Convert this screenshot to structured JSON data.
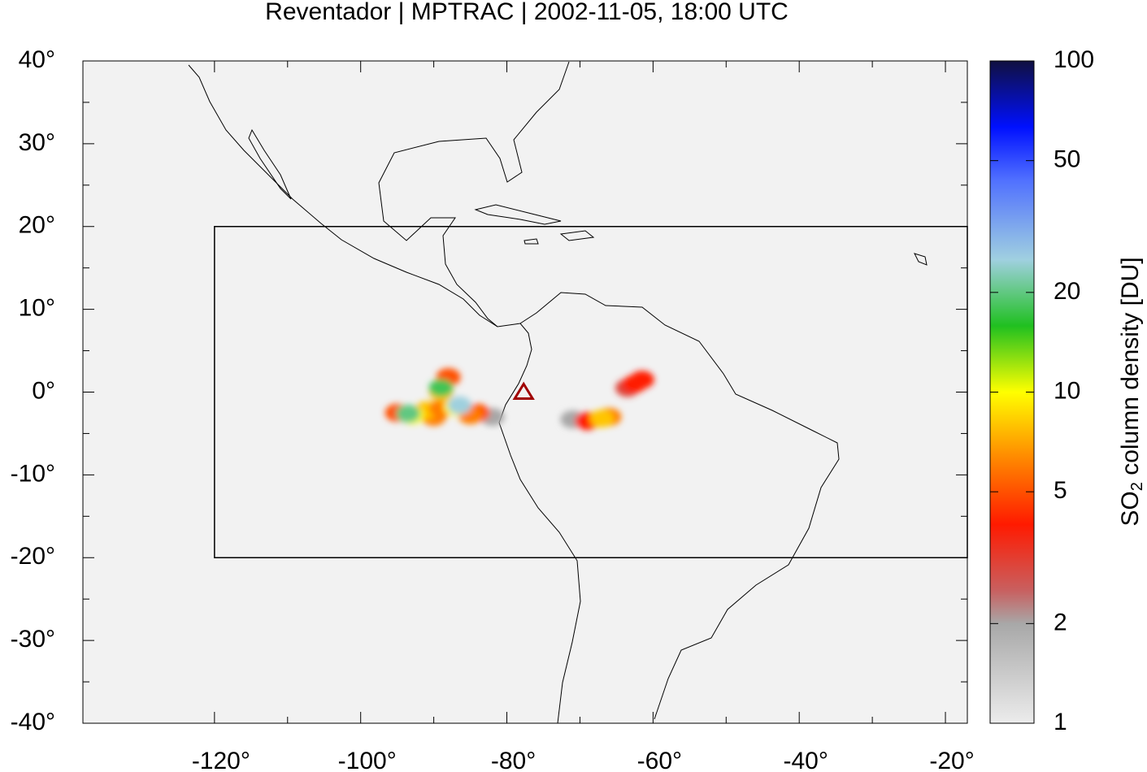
{
  "chart_data": {
    "type": "map",
    "title": "Reventador | MPTRAC | 2002-11-05, 18:00 UTC",
    "xlim": [
      -138,
      -17
    ],
    "ylim": [
      -40,
      40
    ],
    "xticks": [
      {
        "value": -120,
        "label": "-120°"
      },
      {
        "value": -100,
        "label": "-100°"
      },
      {
        "value": -80,
        "label": "-80°"
      },
      {
        "value": -60,
        "label": "-60°"
      },
      {
        "value": -40,
        "label": "-40°"
      },
      {
        "value": -20,
        "label": "-20°"
      }
    ],
    "yticks": [
      {
        "value": 40,
        "label": "40°"
      },
      {
        "value": 30,
        "label": "30°"
      },
      {
        "value": 20,
        "label": "20°"
      },
      {
        "value": 10,
        "label": "10°"
      },
      {
        "value": 0,
        "label": "0°"
      },
      {
        "value": -10,
        "label": "-10°"
      },
      {
        "value": -20,
        "label": "-20°"
      },
      {
        "value": -30,
        "label": "-30°"
      },
      {
        "value": -40,
        "label": "-40°"
      }
    ],
    "colorbar": {
      "label": {
        "main": "SO",
        "subscript": "2",
        "rest": " column density [DU]"
      },
      "log_scale": true,
      "lim": [
        1,
        100
      ],
      "ticks": [
        1,
        2,
        5,
        10,
        20,
        50,
        100
      ]
    },
    "region": {
      "lon": [
        -120,
        -17
      ],
      "lat": [
        -20,
        20
      ]
    },
    "volcano": {
      "lon": -77.7,
      "lat": 0.0,
      "color": "#a00000"
    },
    "plume": {
      "lon": [
        -95,
        -82,
        -84,
        -90,
        -85,
        -91,
        -89,
        -93,
        -87,
        -88,
        -89,
        -93.5,
        -86.5,
        -89,
        -63.5,
        -62.5,
        -61.5,
        -71,
        -69,
        -66,
        -67
      ],
      "lat": [
        -2.5,
        -3,
        -2.5,
        -3,
        -2.8,
        -2.2,
        -2,
        -2.8,
        -1.8,
        1.8,
        0,
        -2.6,
        -1.6,
        0.5,
        0.5,
        1,
        1.5,
        -3.3,
        -3.5,
        -3,
        -3.2
      ],
      "values": [
        5,
        2,
        5,
        6,
        6,
        8,
        6,
        10,
        10,
        5,
        8,
        20,
        25,
        18,
        3,
        4,
        4,
        2,
        4,
        6,
        8
      ]
    }
  }
}
